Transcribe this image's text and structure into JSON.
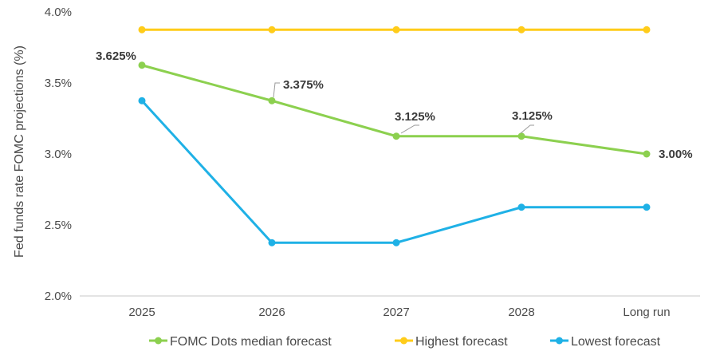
{
  "chart_data": {
    "type": "line",
    "title": "",
    "xlabel": "",
    "ylabel": "Fed funds rate FOMC projections (%)",
    "categories": [
      "2025",
      "2026",
      "2027",
      "2028",
      "Long run"
    ],
    "ylim": [
      2.0,
      4.0
    ],
    "yticks": [
      "2.0%",
      "2.5%",
      "3.0%",
      "3.5%",
      "4.0%"
    ],
    "ytick_values": [
      2.0,
      2.5,
      3.0,
      3.5,
      4.0
    ],
    "grid": false,
    "legend": "bottom",
    "series": [
      {
        "name": "FOMC Dots median forecast",
        "color": "#8cd04f",
        "values": [
          3.625,
          3.375,
          3.125,
          3.125,
          3.0
        ],
        "labels": [
          "3.625%",
          "3.375%",
          "3.125%",
          "3.125%",
          "3.00%"
        ]
      },
      {
        "name": "Highest forecast",
        "color": "#ffcc1a",
        "values": [
          3.875,
          3.875,
          3.875,
          3.875,
          3.875
        ]
      },
      {
        "name": "Lowest forecast",
        "color": "#1fb1e6",
        "values": [
          3.375,
          2.375,
          2.375,
          2.625,
          2.625
        ]
      }
    ]
  }
}
